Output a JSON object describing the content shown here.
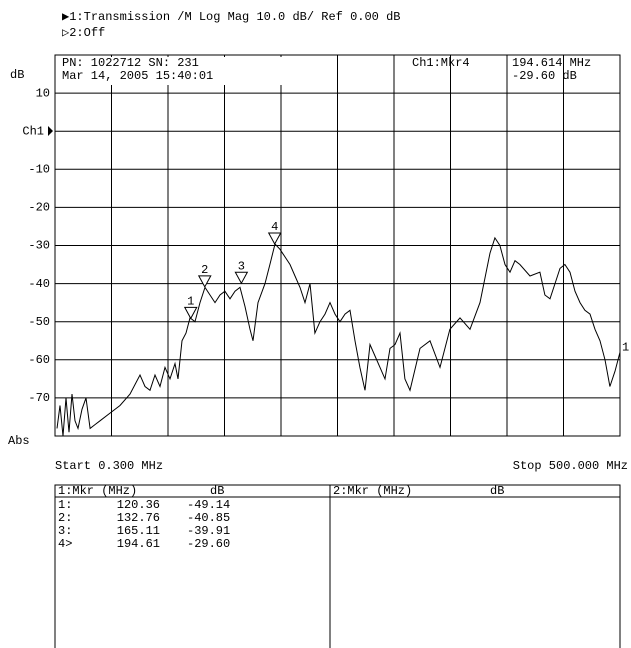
{
  "header": {
    "line1": "▶1:Transmission  /M Log Mag  10.0 dB/  Ref   0.00 dB",
    "line2": "▷2:Off"
  },
  "info": {
    "part": "PN: 1022712 SN: 231",
    "date": "Mar 14, 2005  15:40:01",
    "active_marker": "Ch1:Mkr4",
    "marker_freq": "194.614 MHz",
    "marker_level": "-29.60 dB"
  },
  "chart_data": {
    "type": "line",
    "y_label": "dB",
    "scale_mode": "Abs",
    "trace_label": "1",
    "start_label": "Start 0.300 MHz",
    "stop_label": "Stop 500.000 MHz",
    "xlim": [
      0.3,
      500
    ],
    "ylim": [
      -80,
      20
    ],
    "yticks": [
      10,
      {
        "value": 0,
        "label": "Ch1"
      },
      -10,
      -20,
      -30,
      -40,
      -50,
      -60,
      -70
    ],
    "series": [
      {
        "name": "Transmission",
        "color": "#000000",
        "x": [
          2.1,
          4.7,
          7.4,
          10,
          12.7,
          15.3,
          18,
          20.6,
          24.2,
          27.7,
          31.3,
          35.7,
          40.1,
          48.9,
          57.8,
          66.6,
          75.5,
          79.9,
          84.3,
          88.7,
          93.2,
          97.6,
          102,
          106.4,
          109.1,
          112.6,
          116.2,
          119.7,
          124.1,
          128.5,
          133,
          137.4,
          141.8,
          146.2,
          150.6,
          155.1,
          159.5,
          163.9,
          168.3,
          172.8,
          175.4,
          179.8,
          186,
          190.4,
          194.9,
          199.3,
          203.7,
          208.1,
          212.6,
          217,
          221.4,
          225.8,
          230.2,
          234.7,
          239.1,
          243.5,
          247.9,
          252.4,
          256.8,
          261.2,
          265.6,
          270,
          274.5,
          278.9,
          283.3,
          287.7,
          292.2,
          296.6,
          301,
          305.4,
          309.8,
          314.3,
          323.1,
          332,
          340.8,
          349.6,
          358.5,
          367.3,
          376.2,
          385,
          389.4,
          393.8,
          398.3,
          402.7,
          407.1,
          411.5,
          420.4,
          429.2,
          433.6,
          438.1,
          442.5,
          446.9,
          451.3,
          455.8,
          460.2,
          464.6,
          469,
          473.5,
          477.9,
          482.3,
          486.7,
          491.1,
          495.6,
          500
        ],
        "values": [
          -78,
          -72,
          -80,
          -70,
          -79,
          -69,
          -76,
          -78,
          -73,
          -70,
          -78,
          -77,
          -76,
          -74,
          -72,
          -69,
          -64,
          -67,
          -68,
          -64,
          -67,
          -62,
          -65,
          -61,
          -65,
          -55,
          -53,
          -49,
          -50,
          -45,
          -41,
          -43,
          -45,
          -43,
          -42,
          -44,
          -42,
          -41,
          -46,
          -52,
          -55,
          -45,
          -40,
          -35,
          -29.6,
          -31,
          -33,
          -35,
          -38,
          -41,
          -45,
          -40,
          -53,
          -50,
          -48,
          -45,
          -48,
          -50,
          -48,
          -47,
          -55,
          -62,
          -68,
          -56,
          -59,
          -62,
          -65,
          -57,
          -56,
          -53,
          -65,
          -68,
          -57,
          -55,
          -62,
          -52,
          -49,
          -52,
          -45,
          -32,
          -28,
          -30,
          -35,
          -37,
          -34,
          -35,
          -38,
          -37,
          -43,
          -44,
          -40,
          -36,
          -35,
          -37,
          -42,
          -45,
          -47,
          -48,
          -52,
          -55,
          -60,
          -67,
          -63,
          -58
        ]
      }
    ],
    "markers": [
      {
        "label": "1",
        "x": 120.36,
        "y": -49.14
      },
      {
        "label": "2",
        "x": 132.76,
        "y": -40.85
      },
      {
        "label": "3",
        "x": 165.11,
        "y": -39.91
      },
      {
        "label": "4",
        "x": 194.61,
        "y": -29.6
      }
    ]
  },
  "marker_table": {
    "left_headers": [
      "1:Mkr (MHz)",
      "dB"
    ],
    "right_headers": [
      "2:Mkr (MHz)",
      "dB"
    ],
    "rows": [
      [
        "1:",
        "120.36",
        "-49.14"
      ],
      [
        "2:",
        "132.76",
        "-40.85"
      ],
      [
        "3:",
        "165.11",
        "-39.91"
      ],
      [
        "4>",
        "194.61",
        "-29.60"
      ]
    ]
  }
}
